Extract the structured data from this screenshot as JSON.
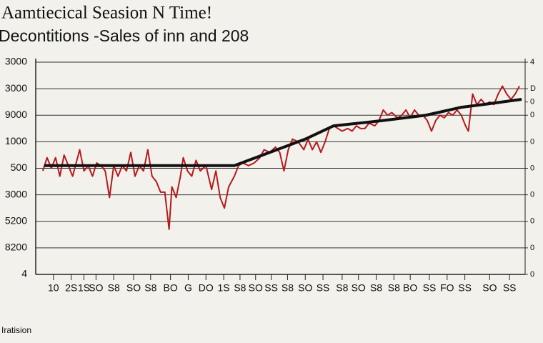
{
  "chart_data": {
    "type": "line",
    "title": "Aamtiecical Seasion N Time!",
    "subtitle": "Decontitions -Sales of inn and 208",
    "x_label": "Iratision",
    "grid": true,
    "xlim": [
      50,
      740
    ],
    "ylim": [
      0,
      8
    ],
    "y2lim": [
      0,
      8
    ],
    "yticks": [
      {
        "value": 0,
        "label": "4"
      },
      {
        "value": 1,
        "label": "8200"
      },
      {
        "value": 2,
        "label": "5200"
      },
      {
        "value": 3,
        "label": "3000"
      },
      {
        "value": 4,
        "label": "500"
      },
      {
        "value": 5,
        "label": "1000"
      },
      {
        "value": 6,
        "label": "9000"
      },
      {
        "value": 7,
        "label": "3000"
      },
      {
        "value": 8,
        "label": "3000"
      }
    ],
    "y2ticks": [
      0,
      {
        "value": 1,
        "label": "0"
      },
      {
        "value": 2,
        "label": "0"
      },
      {
        "value": 3,
        "label": "0"
      },
      {
        "value": 4,
        "label": "0"
      },
      {
        "value": 5,
        "label": "0"
      },
      {
        "value": 6,
        "label": "0"
      },
      {
        "value": 6.5,
        "label": "0"
      },
      {
        "value": 7,
        "label": "D"
      },
      {
        "value": 8,
        "label": "4"
      }
    ],
    "xticks": [
      {
        "value": 75,
        "label": "10"
      },
      {
        "value": 100,
        "label": "2S"
      },
      {
        "value": 118,
        "label": "1S"
      },
      {
        "value": 135,
        "label": "SO"
      },
      {
        "value": 160,
        "label": "S8"
      },
      {
        "value": 188,
        "label": "SO"
      },
      {
        "value": 212,
        "label": "S8"
      },
      {
        "value": 240,
        "label": "BO"
      },
      {
        "value": 265,
        "label": "G"
      },
      {
        "value": 290,
        "label": "DO"
      },
      {
        "value": 315,
        "label": "1S"
      },
      {
        "value": 338,
        "label": "S8"
      },
      {
        "value": 360,
        "label": "SO"
      },
      {
        "value": 382,
        "label": "SS"
      },
      {
        "value": 405,
        "label": "S8"
      },
      {
        "value": 430,
        "label": "SO"
      },
      {
        "value": 455,
        "label": "SS"
      },
      {
        "value": 482,
        "label": "S8"
      },
      {
        "value": 505,
        "label": "SO"
      },
      {
        "value": 530,
        "label": "S8"
      },
      {
        "value": 555,
        "label": "S8"
      },
      {
        "value": 578,
        "label": "BO"
      },
      {
        "value": 605,
        "label": "SS"
      },
      {
        "value": 630,
        "label": "FO"
      },
      {
        "value": 655,
        "label": "SS"
      },
      {
        "value": 690,
        "label": "SO"
      },
      {
        "value": 718,
        "label": "SS"
      }
    ],
    "series": [
      {
        "color": "#b5191c",
        "width": 2,
        "x": [
          60,
          66,
          72,
          78,
          84,
          90,
          96,
          102,
          108,
          112,
          118,
          124,
          130,
          136,
          142,
          148,
          154,
          160,
          166,
          172,
          178,
          184,
          190,
          196,
          202,
          208,
          214,
          220,
          226,
          232,
          238,
          242,
          248,
          254,
          258,
          264,
          270,
          276,
          282,
          290,
          298,
          304,
          310,
          316,
          322,
          330,
          336,
          342,
          350,
          358,
          366,
          372,
          380,
          388,
          394,
          400,
          406,
          412,
          420,
          428,
          434,
          440,
          446,
          452,
          458,
          464,
          470,
          476,
          482,
          490,
          496,
          502,
          508,
          514,
          520,
          528,
          534,
          540,
          546,
          552,
          560,
          566,
          572,
          578,
          584,
          590,
          596,
          602,
          608,
          614,
          620,
          626,
          632,
          638,
          644,
          650,
          656,
          660,
          666,
          672,
          678,
          684,
          690,
          696,
          702,
          708,
          714,
          720,
          726,
          732
        ],
        "values": [
          3.9,
          4.4,
          4.0,
          4.4,
          3.7,
          4.5,
          4.1,
          3.7,
          4.3,
          4.7,
          3.9,
          4.1,
          3.7,
          4.2,
          4.1,
          3.9,
          2.9,
          4.1,
          3.7,
          4.1,
          3.9,
          4.6,
          3.7,
          4.1,
          3.9,
          4.7,
          3.7,
          3.5,
          3.1,
          3.1,
          1.7,
          3.3,
          2.9,
          3.7,
          4.4,
          3.9,
          3.7,
          4.3,
          3.9,
          4.1,
          3.2,
          3.9,
          2.9,
          2.5,
          3.3,
          3.7,
          4.1,
          4.2,
          4.1,
          4.2,
          4.4,
          4.7,
          4.6,
          4.8,
          4.6,
          3.9,
          4.7,
          5.1,
          5.0,
          4.7,
          5.1,
          4.7,
          5.0,
          4.6,
          5.0,
          5.5,
          5.6,
          5.5,
          5.4,
          5.5,
          5.4,
          5.6,
          5.5,
          5.5,
          5.7,
          5.6,
          5.8,
          6.2,
          6.0,
          6.1,
          5.9,
          6.0,
          6.2,
          5.9,
          6.2,
          6.0,
          6.0,
          5.8,
          5.4,
          5.8,
          6.0,
          5.9,
          6.1,
          6.0,
          6.2,
          6.0,
          5.6,
          5.4,
          6.8,
          6.4,
          6.6,
          6.4,
          6.5,
          6.4,
          6.8,
          7.1,
          6.8,
          6.6,
          6.8,
          7.1
        ]
      },
      {
        "color": "#111111",
        "width": 4,
        "x": [
          62,
          150,
          250,
          330,
          380,
          430,
          470,
          540,
          600,
          650,
          680,
          735
        ],
        "values": [
          4.1,
          4.1,
          4.1,
          4.1,
          4.6,
          5.1,
          5.6,
          5.8,
          6.0,
          6.3,
          6.4,
          6.6
        ]
      }
    ]
  }
}
